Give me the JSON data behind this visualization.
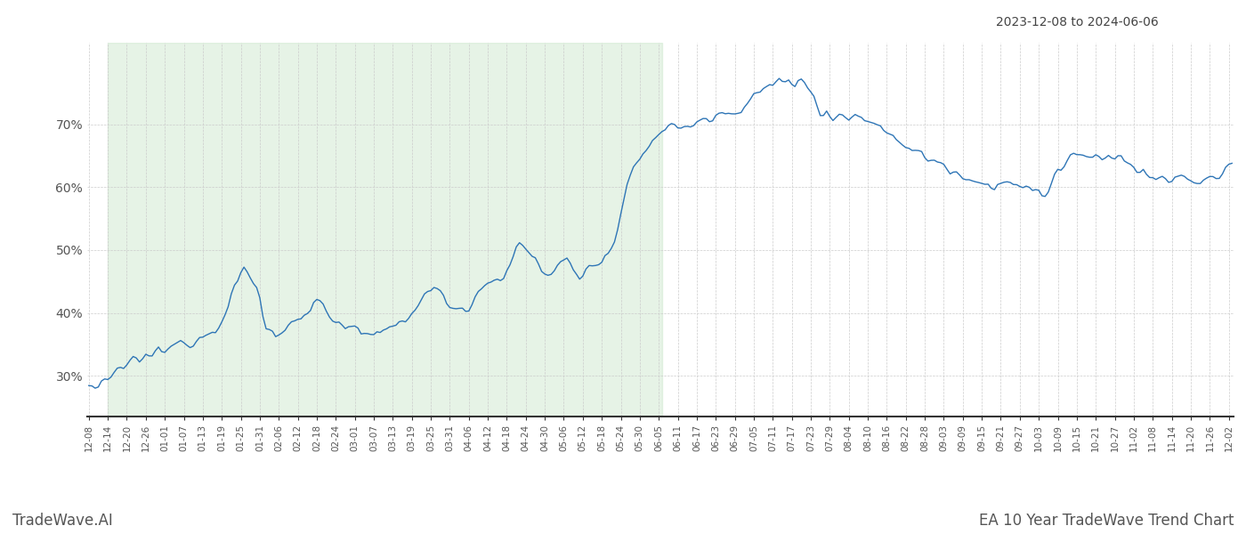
{
  "title_date_range": "2023-12-08 to 2024-06-06",
  "bottom_left": "TradeWave.AI",
  "bottom_right": "EA 10 Year TradeWave Trend Chart",
  "line_color": "#2E75B6",
  "shade_color": "#c8e6c9",
  "shade_alpha": 0.45,
  "shade_start": "2023-12-14",
  "shade_end": "2024-06-06",
  "y_ticks": [
    0.3,
    0.4,
    0.5,
    0.6,
    0.7
  ],
  "y_tick_labels": [
    "30%",
    "40%",
    "50%",
    "60%",
    "70%"
  ],
  "ylim": [
    0.235,
    0.83
  ],
  "background_color": "#ffffff",
  "grid_color": "#cccccc",
  "x_start": "2023-12-08",
  "x_end": "2024-12-03",
  "tick_interval_days": 6
}
